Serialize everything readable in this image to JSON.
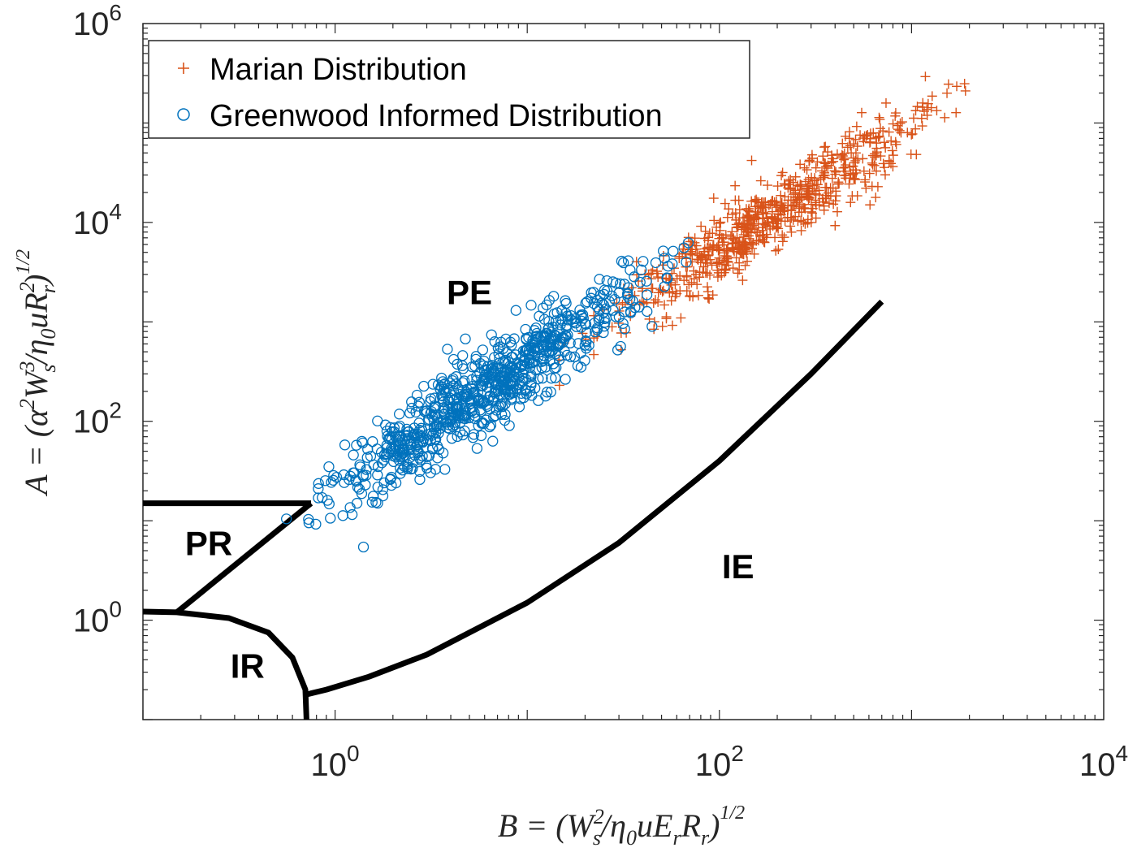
{
  "chart_data": {
    "type": "scatter",
    "x_scale": "log",
    "y_scale": "log",
    "xlim": [
      0.1,
      10000
    ],
    "ylim": [
      0.1,
      1000000
    ],
    "x_ticks": [
      {
        "value": 1,
        "base": "10",
        "exp": "0"
      },
      {
        "value": 100,
        "base": "10",
        "exp": "2"
      },
      {
        "value": 10000,
        "base": "10",
        "exp": "4"
      }
    ],
    "y_ticks": [
      {
        "value": 1,
        "base": "10",
        "exp": "0"
      },
      {
        "value": 100,
        "base": "10",
        "exp": "2"
      },
      {
        "value": 10000,
        "base": "10",
        "exp": "4"
      },
      {
        "value": 1000000,
        "base": "10",
        "exp": "6"
      }
    ],
    "xlabel": {
      "main": "B = (W",
      "sup": "2",
      "sub": "s",
      "rest": "/η",
      "sub2": "0",
      "rest2": "uE",
      "sub3": "r",
      "rest3": "R",
      "sub4": "r",
      "rest4": ")",
      "power": "1/2"
    },
    "ylabel": {
      "main": "A = (α",
      "sup": "2",
      "rest": "W",
      "sup2": "3",
      "sub2": "s",
      "rest2": "/η",
      "sub3": "0",
      "rest3": "uR",
      "sup4": "2",
      "sub4": "r",
      "rest4": ")",
      "power": "1/2"
    },
    "legend": {
      "position": "top-left",
      "entries": [
        {
          "name": "Marian Distribution",
          "marker": "plus",
          "color": "#d95319"
        },
        {
          "name": "Greenwood Informed Distribution",
          "marker": "circle",
          "color": "#0072bd"
        }
      ]
    },
    "series": [
      {
        "name": "Marian Distribution",
        "marker": "plus",
        "color": "#d95319",
        "count": 700,
        "x_range": [
          10,
          3000
        ],
        "trend": {
          "x0": 10,
          "y0": 300,
          "x1": 2500,
          "y1": 300000
        },
        "scatter_decades": 0.18
      },
      {
        "name": "Greenwood Informed Distribution",
        "marker": "circle",
        "color": "#0072bd",
        "count": 800,
        "x_range": [
          0.45,
          90
        ],
        "trend": {
          "x0": 0.5,
          "y0": 8,
          "x1": 70,
          "y1": 5000
        },
        "scatter_decades": 0.2
      }
    ],
    "boundaries": [
      {
        "name": "PR-PE",
        "points": [
          [
            0.1,
            15
          ],
          [
            0.75,
            15
          ]
        ]
      },
      {
        "name": "PR-IR",
        "points": [
          [
            0.15,
            1.2
          ],
          [
            0.75,
            15
          ]
        ]
      },
      {
        "name": "IR",
        "points": [
          [
            0.1,
            1.22
          ],
          [
            0.15,
            1.2
          ],
          [
            0.28,
            1.05
          ],
          [
            0.45,
            0.75
          ],
          [
            0.6,
            0.42
          ],
          [
            0.7,
            0.2
          ],
          [
            0.71,
            0.1
          ]
        ]
      },
      {
        "name": "IE",
        "points": [
          [
            0.72,
            0.18
          ],
          [
            0.9,
            0.2
          ],
          [
            1.5,
            0.27
          ],
          [
            3,
            0.45
          ],
          [
            10,
            1.5
          ],
          [
            30,
            6
          ],
          [
            100,
            40
          ],
          [
            300,
            300
          ],
          [
            700,
            1600
          ]
        ]
      }
    ],
    "region_labels": [
      {
        "text": "PE",
        "x": 5.0,
        "y": 2000
      },
      {
        "text": "PR",
        "x": 0.22,
        "y": 6
      },
      {
        "text": "IR",
        "x": 0.35,
        "y": 0.35
      },
      {
        "text": "IE",
        "x": 125,
        "y": 3.5
      }
    ]
  }
}
